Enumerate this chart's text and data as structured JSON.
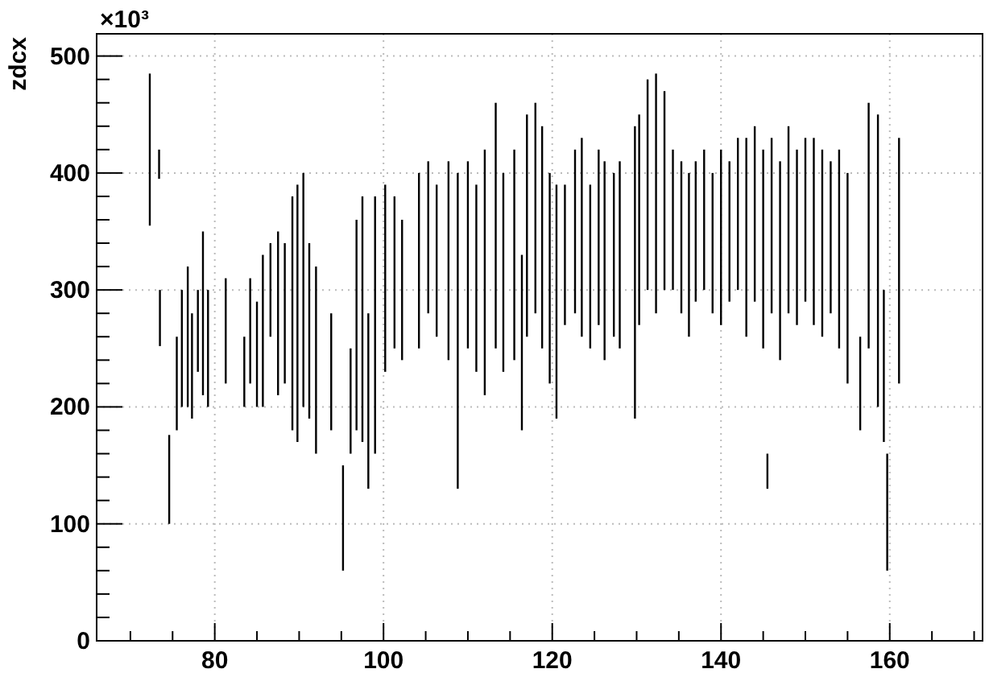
{
  "chart_data": {
    "type": "bar",
    "ylabel": "zdcx",
    "annotations": [
      "×10³"
    ],
    "x": [
      72.3,
      73.4,
      73.5,
      74.6,
      75.5,
      76.1,
      76.8,
      77.3,
      78,
      78.6,
      79.2,
      81.3,
      83.5,
      84.2,
      85,
      85.7,
      86.6,
      87.5,
      88.3,
      89.2,
      89.8,
      90.5,
      91.2,
      92,
      93.8,
      95.2,
      96.1,
      96.8,
      97.5,
      98.2,
      99,
      100.2,
      101.3,
      102.2,
      104.2,
      105.3,
      106.3,
      107.7,
      108.8,
      110,
      111,
      112,
      113.3,
      114.2,
      115.5,
      116.4,
      117,
      118,
      118.8,
      119.7,
      120.5,
      121.5,
      122.7,
      123.5,
      124.5,
      125.5,
      126.2,
      127.3,
      128,
      129.8,
      130.3,
      131.3,
      132.3,
      133.3,
      134.3,
      135.3,
      136.2,
      137,
      138,
      139,
      140,
      141,
      142,
      143,
      144,
      145,
      145.5,
      146,
      147,
      148,
      149,
      150,
      151,
      152,
      153,
      154,
      155,
      156.5,
      157.5,
      158.6,
      159.3,
      159.7,
      161.1
    ],
    "base": [
      355,
      395,
      252,
      100,
      180,
      200,
      200,
      190,
      230,
      210,
      200,
      220,
      200,
      220,
      200,
      200,
      260,
      210,
      220,
      180,
      170,
      200,
      190,
      160,
      180,
      60,
      160,
      180,
      170,
      130,
      160,
      230,
      250,
      240,
      250,
      280,
      260,
      240,
      130,
      250,
      230,
      210,
      250,
      230,
      240,
      180,
      260,
      280,
      250,
      220,
      190,
      270,
      280,
      260,
      250,
      270,
      240,
      260,
      250,
      190,
      270,
      300,
      280,
      300,
      300,
      280,
      260,
      290,
      300,
      280,
      270,
      290,
      300,
      260,
      290,
      250,
      130,
      280,
      240,
      280,
      270,
      290,
      270,
      260,
      280,
      250,
      220,
      180,
      250,
      200,
      170,
      60,
      220
    ],
    "values": [
      130,
      25,
      48,
      76,
      80,
      100,
      120,
      90,
      70,
      140,
      100,
      90,
      60,
      90,
      90,
      130,
      80,
      140,
      120,
      200,
      220,
      200,
      150,
      160,
      100,
      90,
      90,
      180,
      210,
      150,
      220,
      160,
      130,
      120,
      150,
      130,
      130,
      170,
      270,
      160,
      160,
      210,
      210,
      170,
      180,
      150,
      190,
      180,
      190,
      180,
      200,
      120,
      140,
      170,
      140,
      150,
      170,
      140,
      160,
      250,
      180,
      180,
      205,
      170,
      120,
      130,
      140,
      120,
      120,
      120,
      150,
      120,
      130,
      170,
      150,
      170,
      30,
      150,
      170,
      160,
      150,
      140,
      160,
      160,
      130,
      170,
      180,
      80,
      210,
      250,
      130,
      100,
      210
    ],
    "color": "#000000",
    "xlim": [
      66,
      171
    ],
    "ylim": [
      0,
      519
    ],
    "xticks": [
      {
        "value": 70,
        "label": null
      },
      {
        "value": 75,
        "label": null
      },
      80,
      {
        "value": 85,
        "label": null
      },
      {
        "value": 90,
        "label": null
      },
      {
        "value": 95,
        "label": null
      },
      100,
      {
        "value": 105,
        "label": null
      },
      {
        "value": 110,
        "label": null
      },
      {
        "value": 115,
        "label": null
      },
      120,
      {
        "value": 125,
        "label": null
      },
      {
        "value": 130,
        "label": null
      },
      {
        "value": 135,
        "label": null
      },
      140,
      {
        "value": 145,
        "label": null
      },
      {
        "value": 150,
        "label": null
      },
      {
        "value": 155,
        "label": null
      },
      160,
      {
        "value": 165,
        "label": null
      },
      {
        "value": 170,
        "label": null
      }
    ],
    "yticks": [
      0,
      {
        "value": 20,
        "label": null
      },
      {
        "value": 40,
        "label": null
      },
      {
        "value": 60,
        "label": null
      },
      {
        "value": 80,
        "label": null
      },
      100,
      {
        "value": 120,
        "label": null
      },
      {
        "value": 140,
        "label": null
      },
      {
        "value": 160,
        "label": null
      },
      {
        "value": 180,
        "label": null
      },
      200,
      {
        "value": 220,
        "label": null
      },
      {
        "value": 240,
        "label": null
      },
      {
        "value": 260,
        "label": null
      },
      {
        "value": 280,
        "label": null
      },
      300,
      {
        "value": 320,
        "label": null
      },
      {
        "value": 340,
        "label": null
      },
      {
        "value": 360,
        "label": null
      },
      {
        "value": 380,
        "label": null
      },
      400,
      {
        "value": 420,
        "label": null
      },
      {
        "value": 440,
        "label": null
      },
      {
        "value": 460,
        "label": null
      },
      {
        "value": 480,
        "label": null
      },
      500
    ],
    "grid": true
  }
}
